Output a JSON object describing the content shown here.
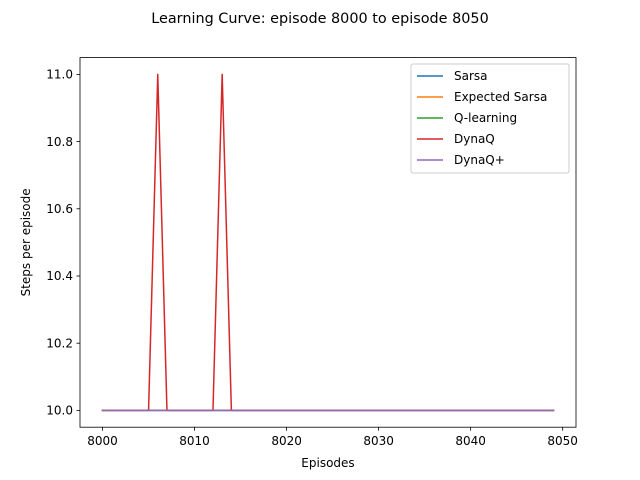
{
  "chart_data": {
    "type": "line",
    "title": "Learning Curve: episode 8000 to episode 8050",
    "xlabel": "Episodes",
    "ylabel": "Steps per episode",
    "xlim": [
      7997.55,
      8051.45
    ],
    "ylim": [
      9.95,
      11.05
    ],
    "xticks": [
      8000,
      8010,
      8020,
      8030,
      8040,
      8050
    ],
    "yticks": [
      10.0,
      10.2,
      10.4,
      10.6,
      10.8,
      11.0
    ],
    "xtick_labels": [
      "8000",
      "8010",
      "8020",
      "8030",
      "8040",
      "8050"
    ],
    "ytick_labels": [
      "10.0",
      "10.2",
      "10.4",
      "10.6",
      "10.8",
      "11.0"
    ],
    "grid": false,
    "legend_position": "upper right",
    "x": [
      8000,
      8001,
      8002,
      8003,
      8004,
      8005,
      8006,
      8007,
      8008,
      8009,
      8010,
      8011,
      8012,
      8013,
      8014,
      8015,
      8016,
      8017,
      8018,
      8019,
      8020,
      8021,
      8022,
      8023,
      8024,
      8025,
      8026,
      8027,
      8028,
      8029,
      8030,
      8031,
      8032,
      8033,
      8034,
      8035,
      8036,
      8037,
      8038,
      8039,
      8040,
      8041,
      8042,
      8043,
      8044,
      8045,
      8046,
      8047,
      8048,
      8049
    ],
    "series": [
      {
        "name": "Sarsa",
        "color": "#1f77b4",
        "values": [
          10,
          10,
          10,
          10,
          10,
          10,
          10,
          10,
          10,
          10,
          10,
          10,
          10,
          10,
          10,
          10,
          10,
          10,
          10,
          10,
          10,
          10,
          10,
          10,
          10,
          10,
          10,
          10,
          10,
          10,
          10,
          10,
          10,
          10,
          10,
          10,
          10,
          10,
          10,
          10,
          10,
          10,
          10,
          10,
          10,
          10,
          10,
          10,
          10,
          10
        ]
      },
      {
        "name": "Expected Sarsa",
        "color": "#ff7f0e",
        "values": [
          10,
          10,
          10,
          10,
          10,
          10,
          10,
          10,
          10,
          10,
          10,
          10,
          10,
          10,
          10,
          10,
          10,
          10,
          10,
          10,
          10,
          10,
          10,
          10,
          10,
          10,
          10,
          10,
          10,
          10,
          10,
          10,
          10,
          10,
          10,
          10,
          10,
          10,
          10,
          10,
          10,
          10,
          10,
          10,
          10,
          10,
          10,
          10,
          10,
          10
        ]
      },
      {
        "name": "Q-learning",
        "color": "#2ca02c",
        "values": [
          10,
          10,
          10,
          10,
          10,
          10,
          10,
          10,
          10,
          10,
          10,
          10,
          10,
          10,
          10,
          10,
          10,
          10,
          10,
          10,
          10,
          10,
          10,
          10,
          10,
          10,
          10,
          10,
          10,
          10,
          10,
          10,
          10,
          10,
          10,
          10,
          10,
          10,
          10,
          10,
          10,
          10,
          10,
          10,
          10,
          10,
          10,
          10,
          10,
          10
        ]
      },
      {
        "name": "DynaQ",
        "color": "#d62728",
        "values": [
          10,
          10,
          10,
          10,
          10,
          10,
          11,
          10,
          10,
          10,
          10,
          10,
          10,
          11,
          10,
          10,
          10,
          10,
          10,
          10,
          10,
          10,
          10,
          10,
          10,
          10,
          10,
          10,
          10,
          10,
          10,
          10,
          10,
          10,
          10,
          10,
          10,
          10,
          10,
          10,
          10,
          10,
          10,
          10,
          10,
          10,
          10,
          10,
          10,
          10
        ]
      },
      {
        "name": "DynaQ+",
        "color": "#9467bd",
        "values": [
          10,
          10,
          10,
          10,
          10,
          10,
          10,
          10,
          10,
          10,
          10,
          10,
          10,
          10,
          10,
          10,
          10,
          10,
          10,
          10,
          10,
          10,
          10,
          10,
          10,
          10,
          10,
          10,
          10,
          10,
          10,
          10,
          10,
          10,
          10,
          10,
          10,
          10,
          10,
          10,
          10,
          10,
          10,
          10,
          10,
          10,
          10,
          10,
          10,
          10
        ]
      }
    ]
  }
}
